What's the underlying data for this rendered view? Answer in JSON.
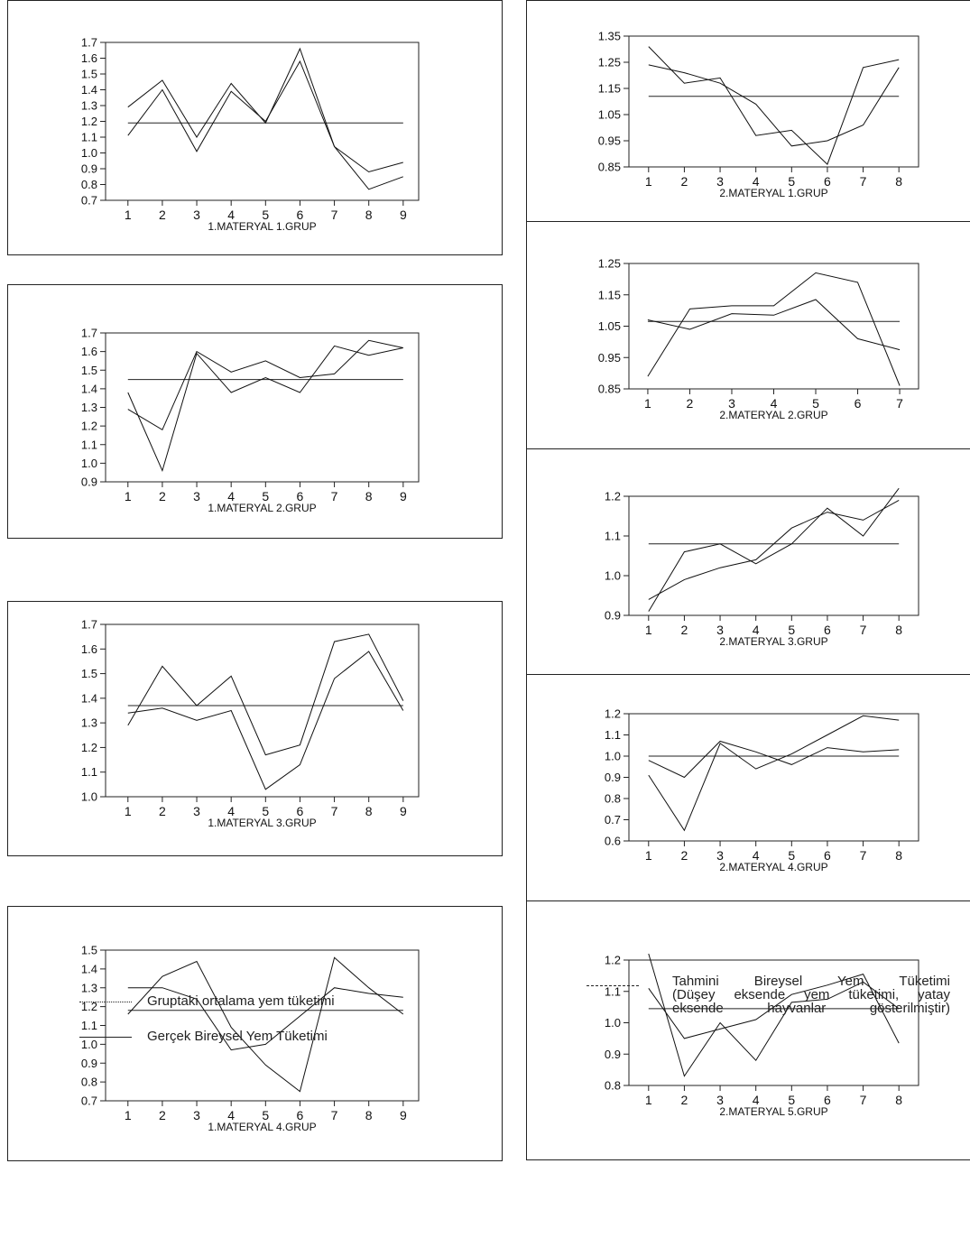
{
  "charts": [
    {
      "id": "m1g1",
      "caption": "1.MATERYAL 1.GRUP",
      "ylim": [
        0.7,
        1.7
      ],
      "yticks": [
        "0.7",
        "0.8",
        "0.9",
        "1.0",
        "1.1",
        "1.2",
        "1.3",
        "1.4",
        "1.5",
        "1.6",
        "1.7"
      ],
      "x": [
        1,
        2,
        3,
        4,
        5,
        6,
        7,
        8,
        9
      ],
      "xlim": [
        0.35,
        9.45
      ],
      "mean": 1.19,
      "series": [
        [
          1.29,
          1.46,
          1.1,
          1.44,
          1.19,
          1.66,
          1.04,
          0.88,
          0.94
        ],
        [
          1.11,
          1.4,
          1.01,
          1.39,
          1.2,
          1.58,
          1.04,
          0.77,
          0.85
        ]
      ]
    },
    {
      "id": "m1g2",
      "caption": "1.MATERYAL 2.GRUP",
      "ylim": [
        0.9,
        1.7
      ],
      "yticks": [
        "0.9",
        "1.0",
        "1.1",
        "1.2",
        "1.3",
        "1.4",
        "1.5",
        "1.6",
        "1.7"
      ],
      "x": [
        1,
        2,
        3,
        4,
        5,
        6,
        7,
        8,
        9
      ],
      "xlim": [
        0.35,
        9.45
      ],
      "mean": 1.45,
      "series": [
        [
          1.29,
          1.18,
          1.6,
          1.49,
          1.55,
          1.46,
          1.48,
          1.66,
          1.62
        ],
        [
          1.38,
          0.96,
          1.59,
          1.38,
          1.46,
          1.38,
          1.63,
          1.58,
          1.62
        ]
      ]
    },
    {
      "id": "m1g3",
      "caption": "1.MATERYAL 3.GRUP",
      "ylim": [
        1.0,
        1.7
      ],
      "yticks": [
        "1.0",
        "1.1",
        "1.2",
        "1.3",
        "1.4",
        "1.5",
        "1.6",
        "1.7"
      ],
      "x": [
        1,
        2,
        3,
        4,
        5,
        6,
        7,
        8,
        9
      ],
      "xlim": [
        0.35,
        9.45
      ],
      "mean": 1.37,
      "series": [
        [
          1.29,
          1.53,
          1.37,
          1.49,
          1.17,
          1.21,
          1.63,
          1.66,
          1.39
        ],
        [
          1.34,
          1.36,
          1.31,
          1.35,
          1.03,
          1.13,
          1.48,
          1.59,
          1.35
        ]
      ]
    },
    {
      "id": "m1g4",
      "caption": "1.MATERYAL 4.GRUP",
      "ylim": [
        0.7,
        1.5
      ],
      "yticks": [
        "0.7",
        "0.8",
        "0.9",
        "1.0",
        "1.1",
        "1.2",
        "1.3",
        "1.4",
        "1.5"
      ],
      "x": [
        1,
        2,
        3,
        4,
        5,
        6,
        7,
        8,
        9
      ],
      "xlim": [
        0.35,
        9.45
      ],
      "mean": 1.18,
      "series": [
        [
          1.16,
          1.36,
          1.44,
          1.09,
          0.89,
          0.75,
          1.46,
          1.3,
          1.16
        ],
        [
          1.3,
          1.3,
          1.24,
          0.97,
          1.0,
          1.15,
          1.3,
          1.27,
          1.25
        ]
      ]
    },
    {
      "id": "m2g1",
      "caption": "2.MATERYAL 1.GRUP",
      "ylim": [
        0.85,
        1.35
      ],
      "yticks": [
        "0.85",
        "0.95",
        "1.05",
        "1.15",
        "1.25",
        "1.35"
      ],
      "x": [
        1,
        2,
        3,
        4,
        5,
        6,
        7,
        8
      ],
      "xlim": [
        0.45,
        8.55
      ],
      "mean": 1.12,
      "series": [
        [
          1.31,
          1.17,
          1.19,
          0.97,
          0.99,
          0.86,
          1.23,
          1.26
        ],
        [
          1.24,
          1.21,
          1.17,
          1.09,
          0.93,
          0.95,
          1.01,
          1.23
        ]
      ]
    },
    {
      "id": "m2g2",
      "caption": "2.MATERYAL 2.GRUP",
      "ylim": [
        0.85,
        1.25
      ],
      "yticks": [
        "0.85",
        "0.95",
        "1.05",
        "1.15",
        "1.25"
      ],
      "x": [
        1,
        2,
        3,
        4,
        5,
        6,
        7
      ],
      "xlim": [
        0.55,
        7.45
      ],
      "mean": 1.065,
      "series": [
        [
          0.89,
          1.105,
          1.115,
          1.115,
          1.22,
          1.19,
          0.86
        ],
        [
          1.07,
          1.04,
          1.09,
          1.085,
          1.135,
          1.01,
          0.975
        ]
      ]
    },
    {
      "id": "m2g3",
      "caption": "2.MATERYAL 3.GRUP",
      "ylim": [
        0.9,
        1.2
      ],
      "yticks": [
        "0.9",
        "1.0",
        "1.1",
        "1.2"
      ],
      "x": [
        1,
        2,
        3,
        4,
        5,
        6,
        7,
        8
      ],
      "xlim": [
        0.45,
        8.55
      ],
      "mean": 1.08,
      "series": [
        [
          0.91,
          1.06,
          1.08,
          1.03,
          1.08,
          1.17,
          1.1,
          1.22
        ],
        [
          0.94,
          0.99,
          1.02,
          1.04,
          1.12,
          1.16,
          1.14,
          1.19
        ]
      ]
    },
    {
      "id": "m2g4",
      "caption": "2.MATERYAL 4.GRUP",
      "ylim": [
        0.6,
        1.2
      ],
      "yticks": [
        "0.6",
        "0.7",
        "0.8",
        "0.9",
        "1.0",
        "1.1",
        "1.2"
      ],
      "x": [
        1,
        2,
        3,
        4,
        5,
        6,
        7,
        8
      ],
      "xlim": [
        0.45,
        8.55
      ],
      "mean": 1.0,
      "series": [
        [
          0.91,
          0.65,
          1.06,
          0.94,
          1.01,
          1.1,
          1.19,
          1.17
        ],
        [
          0.98,
          0.9,
          1.07,
          1.02,
          0.96,
          1.04,
          1.02,
          1.03
        ]
      ]
    },
    {
      "id": "m2g5",
      "caption": "2.MATERYAL 5.GRUP",
      "ylim": [
        0.8,
        1.2
      ],
      "yticks": [
        "0.8",
        "0.9",
        "1.0",
        "1.1",
        "1.2"
      ],
      "x": [
        1,
        2,
        3,
        4,
        5,
        6,
        7,
        8
      ],
      "xlim": [
        0.45,
        8.55
      ],
      "mean": 1.045,
      "series": [
        [
          1.22,
          0.83,
          1.0,
          0.88,
          1.065,
          1.075,
          1.13,
          1.045
        ],
        [
          1.11,
          0.95,
          0.98,
          1.01,
          1.09,
          1.12,
          1.155,
          0.935
        ]
      ]
    }
  ],
  "legend": {
    "mean_label": "Gruptaki ortalama yem tüketimi",
    "actual_label": "Gerçek Bireysel Yem Tüketimi",
    "estimated_lines": [
      "Tahmini Bireysel Yem Tüketimi",
      "(Düşey eksende yem tüketimi, yatay",
      "eksende hayvanlar gösterilmiştir)"
    ]
  }
}
